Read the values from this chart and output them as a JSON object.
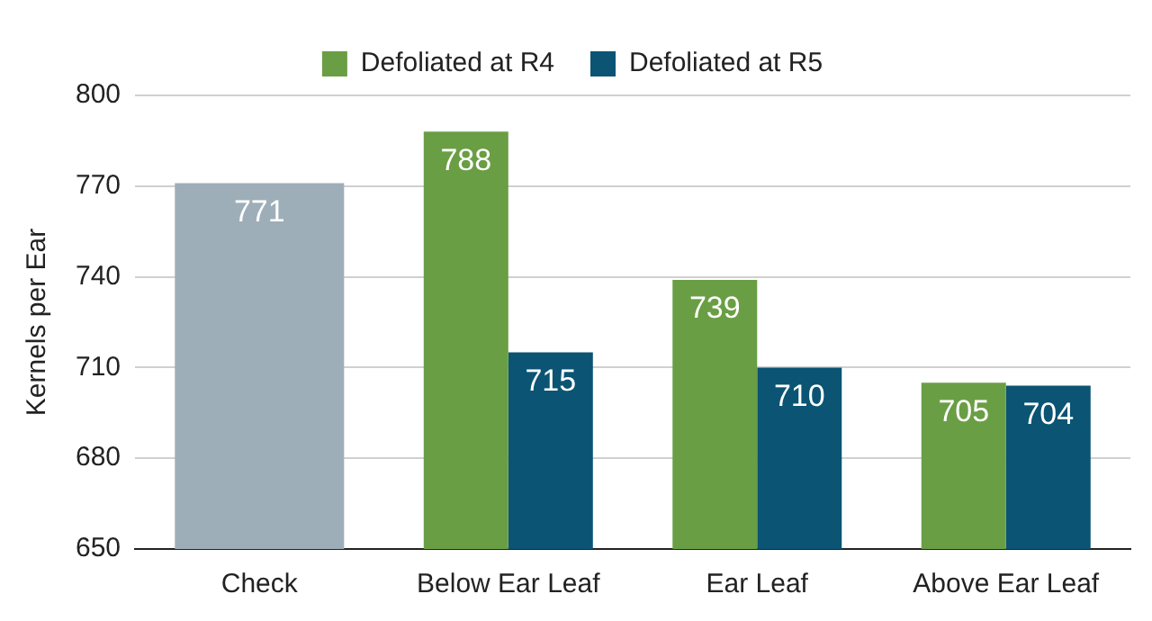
{
  "chart_data": {
    "type": "bar",
    "ylabel": "Kernels per Ear",
    "categories": [
      "Check",
      "Below Ear Leaf",
      "Ear Leaf",
      "Above Ear Leaf"
    ],
    "series": [
      {
        "color": "#9eaeb8",
        "values": [
          771,
          null,
          null,
          null
        ]
      },
      {
        "name": "Defoliated at R4",
        "color": "#6a9e44",
        "values": [
          null,
          788,
          739,
          705
        ]
      },
      {
        "name": "Defoliated at R5",
        "color": "#0b5473",
        "values": [
          null,
          715,
          710,
          704
        ]
      }
    ],
    "ylim": [
      650,
      800
    ],
    "yticks": [
      650,
      680,
      710,
      740,
      770,
      800
    ],
    "grid": "y",
    "legend": "top",
    "data_labels": true
  }
}
